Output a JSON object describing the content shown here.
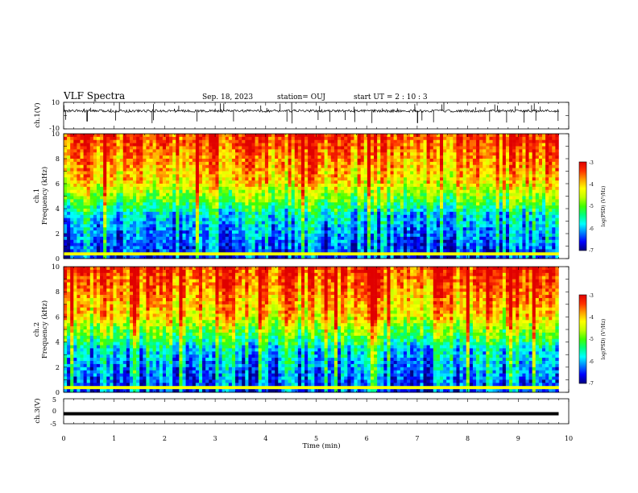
{
  "header": {
    "title": "VLF Spectra",
    "date": "Sep. 18, 2023",
    "station": "station= OUJ",
    "start_ut": "start  UT =   2 : 10 : 3"
  },
  "chart_data": [
    {
      "type": "line",
      "panel": "ch1-waveform",
      "ylabel": "ch.1(V)",
      "ylim": [
        -10,
        10
      ],
      "y_ticks": [
        "10",
        "-10"
      ],
      "xlim": [
        0,
        10
      ],
      "baseline": 3.5,
      "noise_amplitude": 1.0,
      "spikes_max": 10
    },
    {
      "type": "heatmap",
      "panel": "ch1-spectrogram",
      "ylabel_line1": "ch.1",
      "ylabel_line2": "Frequency  (kHz)",
      "ylim": [
        0,
        10
      ],
      "y_ticks": [
        "0",
        "2",
        "4",
        "6",
        "8",
        "10"
      ],
      "xlim": [
        0,
        9.8
      ],
      "colorbar": {
        "label": "log(PSD) (V²/Hz)",
        "range": [
          -7,
          -3
        ],
        "ticks": [
          "-3",
          "-4",
          "-5",
          "-6",
          "-7"
        ],
        "colors": [
          "#000080",
          "#0000ff",
          "#0080ff",
          "#00ffff",
          "#00ff80",
          "#40ff00",
          "#c0ff00",
          "#ffff00",
          "#ffa000",
          "#ff3000",
          "#e00000"
        ]
      }
    },
    {
      "type": "heatmap",
      "panel": "ch2-spectrogram",
      "ylabel_line1": "ch.2",
      "ylabel_line2": "Frequency  (kHz)",
      "ylim": [
        0,
        10
      ],
      "y_ticks": [
        "0",
        "2",
        "4",
        "6",
        "8",
        "10"
      ],
      "xlim": [
        0,
        9.8
      ],
      "colorbar": {
        "label": "log(PSD) (V²/Hz)",
        "range": [
          -7,
          -3
        ],
        "ticks": [
          "-3",
          "-4",
          "-5",
          "-6",
          "-7"
        ],
        "colors": [
          "#000080",
          "#0000ff",
          "#0080ff",
          "#00ffff",
          "#00ff80",
          "#40ff00",
          "#c0ff00",
          "#ffff00",
          "#ffa000",
          "#ff3000",
          "#e00000"
        ]
      }
    },
    {
      "type": "line",
      "panel": "ch3-waveform",
      "ylabel": "ch.3(V)",
      "ylim": [
        -5,
        5
      ],
      "y_ticks": [
        "5",
        "0",
        "-5"
      ],
      "xlim": [
        0,
        9.8
      ],
      "value": -1.0,
      "xlabel": "Time  (min)",
      "x_ticks": [
        "0",
        "1",
        "2",
        "3",
        "4",
        "5",
        "6",
        "7",
        "8",
        "9",
        "10"
      ]
    }
  ]
}
